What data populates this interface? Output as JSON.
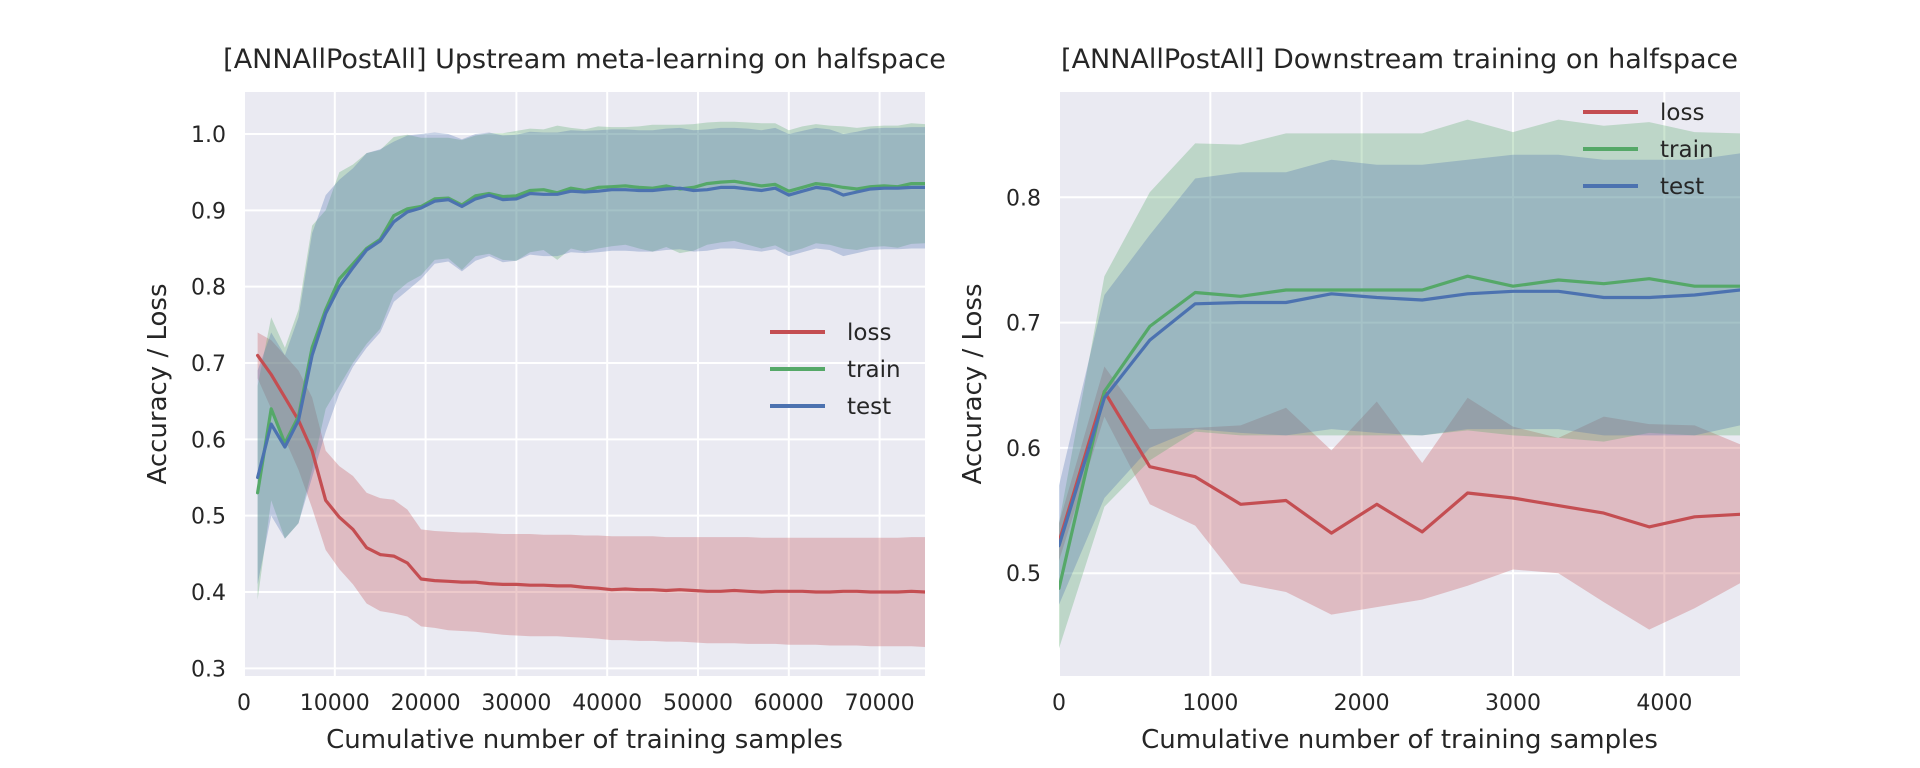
{
  "chart_data": [
    {
      "type": "line",
      "title": "[ANNAllPostAll] Upstream meta-learning on halfspace",
      "xlabel": "Cumulative number of training samples",
      "ylabel": "Accuracy / Loss",
      "xlim": [
        0,
        75000
      ],
      "ylim": [
        0.29,
        1.055
      ],
      "xticks": [
        0,
        10000,
        20000,
        30000,
        40000,
        50000,
        60000,
        70000
      ],
      "yticks": [
        0.3,
        0.4,
        0.5,
        0.6,
        0.7,
        0.8,
        0.9,
        1.0
      ],
      "ytick_labels": [
        "0.3",
        "0.4",
        "0.5",
        "0.6",
        "0.7",
        "0.8",
        "0.9",
        "1.0"
      ],
      "grid": true,
      "legend": "center-right",
      "x": [
        1500,
        3000,
        4500,
        6000,
        7500,
        9000,
        10500,
        12000,
        13500,
        15000,
        16500,
        18000,
        19500,
        21000,
        22500,
        24000,
        25500,
        27000,
        28500,
        30000,
        31500,
        33000,
        34500,
        36000,
        37500,
        39000,
        40500,
        42000,
        43500,
        45000,
        46500,
        48000,
        49500,
        51000,
        52500,
        54000,
        55500,
        57000,
        58500,
        60000,
        61500,
        63000,
        64500,
        66000,
        67500,
        69000,
        70500,
        72000,
        73500,
        75000
      ],
      "series": [
        {
          "name": "loss",
          "color": "#c44e52",
          "values": [
            0.71,
            0.685,
            0.655,
            0.625,
            0.585,
            0.52,
            0.498,
            0.482,
            0.458,
            0.449,
            0.447,
            0.438,
            0.417,
            0.415,
            0.414,
            0.413,
            0.413,
            0.411,
            0.41,
            0.41,
            0.409,
            0.409,
            0.408,
            0.408,
            0.406,
            0.405,
            0.403,
            0.404,
            0.403,
            0.403,
            0.402,
            0.403,
            0.402,
            0.401,
            0.401,
            0.402,
            0.401,
            0.4,
            0.401,
            0.401,
            0.401,
            0.4,
            0.4,
            0.401,
            0.401,
            0.4,
            0.4,
            0.4,
            0.401,
            0.4
          ],
          "lower": [
            0.68,
            0.64,
            0.6,
            0.56,
            0.51,
            0.455,
            0.43,
            0.41,
            0.385,
            0.375,
            0.372,
            0.368,
            0.355,
            0.353,
            0.35,
            0.349,
            0.348,
            0.346,
            0.344,
            0.343,
            0.342,
            0.342,
            0.342,
            0.341,
            0.34,
            0.339,
            0.337,
            0.337,
            0.336,
            0.336,
            0.335,
            0.335,
            0.334,
            0.333,
            0.333,
            0.333,
            0.332,
            0.332,
            0.332,
            0.331,
            0.331,
            0.331,
            0.33,
            0.33,
            0.33,
            0.329,
            0.329,
            0.329,
            0.329,
            0.328
          ],
          "upper": [
            0.74,
            0.73,
            0.71,
            0.69,
            0.655,
            0.585,
            0.565,
            0.552,
            0.53,
            0.523,
            0.521,
            0.508,
            0.482,
            0.48,
            0.479,
            0.478,
            0.478,
            0.477,
            0.476,
            0.476,
            0.476,
            0.475,
            0.475,
            0.475,
            0.474,
            0.474,
            0.473,
            0.473,
            0.473,
            0.473,
            0.472,
            0.472,
            0.472,
            0.472,
            0.472,
            0.472,
            0.472,
            0.471,
            0.471,
            0.471,
            0.471,
            0.471,
            0.471,
            0.471,
            0.471,
            0.471,
            0.471,
            0.471,
            0.472,
            0.472
          ]
        },
        {
          "name": "train",
          "color": "#55a868",
          "values": [
            0.53,
            0.64,
            0.595,
            0.63,
            0.72,
            0.77,
            0.81,
            0.83,
            0.85,
            0.862,
            0.893,
            0.902,
            0.905,
            0.915,
            0.916,
            0.907,
            0.919,
            0.922,
            0.918,
            0.919,
            0.926,
            0.927,
            0.923,
            0.929,
            0.926,
            0.93,
            0.931,
            0.932,
            0.93,
            0.929,
            0.932,
            0.928,
            0.93,
            0.935,
            0.937,
            0.938,
            0.935,
            0.932,
            0.934,
            0.925,
            0.93,
            0.935,
            0.933,
            0.93,
            0.928,
            0.931,
            0.932,
            0.931,
            0.935,
            0.935
          ],
          "lower": [
            0.39,
            0.52,
            0.47,
            0.49,
            0.56,
            0.64,
            0.67,
            0.7,
            0.725,
            0.745,
            0.79,
            0.805,
            0.815,
            0.835,
            0.837,
            0.822,
            0.84,
            0.843,
            0.835,
            0.834,
            0.845,
            0.848,
            0.835,
            0.85,
            0.846,
            0.85,
            0.853,
            0.855,
            0.85,
            0.846,
            0.852,
            0.844,
            0.847,
            0.855,
            0.858,
            0.86,
            0.855,
            0.85,
            0.854,
            0.845,
            0.85,
            0.857,
            0.855,
            0.85,
            0.848,
            0.852,
            0.853,
            0.851,
            0.856,
            0.857
          ],
          "upper": [
            0.67,
            0.76,
            0.72,
            0.77,
            0.88,
            0.9,
            0.95,
            0.96,
            0.975,
            0.979,
            0.996,
            0.999,
            0.995,
            0.995,
            0.995,
            0.992,
            0.998,
            1.001,
            1.001,
            1.004,
            1.007,
            1.006,
            1.011,
            1.008,
            1.006,
            1.01,
            1.009,
            1.009,
            1.01,
            1.012,
            1.012,
            1.012,
            1.013,
            1.015,
            1.016,
            1.016,
            1.015,
            1.014,
            1.014,
            1.005,
            1.01,
            1.013,
            1.011,
            1.01,
            1.008,
            1.01,
            1.011,
            1.011,
            1.014,
            1.013
          ]
        },
        {
          "name": "test",
          "color": "#4c72b0",
          "values": [
            0.55,
            0.62,
            0.59,
            0.625,
            0.71,
            0.765,
            0.8,
            0.825,
            0.848,
            0.86,
            0.885,
            0.898,
            0.903,
            0.912,
            0.914,
            0.905,
            0.915,
            0.92,
            0.914,
            0.915,
            0.922,
            0.921,
            0.921,
            0.925,
            0.924,
            0.925,
            0.927,
            0.927,
            0.926,
            0.926,
            0.928,
            0.929,
            0.926,
            0.927,
            0.93,
            0.93,
            0.928,
            0.926,
            0.929,
            0.92,
            0.925,
            0.93,
            0.928,
            0.92,
            0.924,
            0.928,
            0.929,
            0.929,
            0.93,
            0.93
          ],
          "lower": [
            0.41,
            0.5,
            0.47,
            0.49,
            0.55,
            0.61,
            0.66,
            0.695,
            0.72,
            0.74,
            0.78,
            0.795,
            0.81,
            0.83,
            0.833,
            0.82,
            0.834,
            0.84,
            0.832,
            0.834,
            0.842,
            0.84,
            0.84,
            0.845,
            0.844,
            0.845,
            0.847,
            0.847,
            0.846,
            0.846,
            0.848,
            0.849,
            0.846,
            0.847,
            0.85,
            0.85,
            0.848,
            0.846,
            0.849,
            0.84,
            0.845,
            0.85,
            0.848,
            0.84,
            0.844,
            0.848,
            0.849,
            0.849,
            0.85,
            0.85
          ],
          "upper": [
            0.69,
            0.74,
            0.71,
            0.76,
            0.87,
            0.92,
            0.94,
            0.955,
            0.975,
            0.98,
            0.99,
            0.998,
            1.0,
            1.002,
            1.0,
            0.993,
            1.0,
            1.002,
            0.998,
            0.999,
            1.003,
            1.002,
            1.002,
            1.005,
            1.004,
            1.005,
            1.006,
            1.006,
            1.005,
            1.005,
            1.007,
            1.008,
            1.005,
            1.006,
            1.008,
            1.008,
            1.007,
            1.005,
            1.008,
            1.0,
            1.004,
            1.008,
            1.006,
            1.0,
            1.003,
            1.007,
            1.008,
            1.008,
            1.009,
            1.009
          ]
        }
      ]
    },
    {
      "type": "line",
      "title": "[ANNAllPostAll] Downstream training on halfspace",
      "xlabel": "Cumulative number of training samples",
      "ylabel": "Accuracy / Loss",
      "xlim": [
        0,
        4500
      ],
      "ylim": [
        0.418,
        0.884
      ],
      "xticks": [
        0,
        1000,
        2000,
        3000,
        4000
      ],
      "yticks": [
        0.5,
        0.6,
        0.7,
        0.8
      ],
      "ytick_labels": [
        "0.5",
        "0.6",
        "0.7",
        "0.8"
      ],
      "grid": true,
      "legend": "top-right",
      "x": [
        0,
        300,
        600,
        900,
        1200,
        1500,
        1800,
        2100,
        2400,
        2700,
        3000,
        3300,
        3600,
        3900,
        4200,
        4500
      ],
      "series": [
        {
          "name": "loss",
          "color": "#c44e52",
          "values": [
            0.525,
            0.645,
            0.585,
            0.577,
            0.555,
            0.558,
            0.532,
            0.555,
            0.533,
            0.564,
            0.56,
            0.554,
            0.548,
            0.537,
            0.545,
            0.547
          ],
          "lower": [
            0.51,
            0.625,
            0.555,
            0.538,
            0.492,
            0.485,
            0.467,
            0.473,
            0.479,
            0.49,
            0.503,
            0.5,
            0.477,
            0.455,
            0.472,
            0.492
          ],
          "upper": [
            0.54,
            0.665,
            0.615,
            0.616,
            0.618,
            0.632,
            0.598,
            0.637,
            0.588,
            0.64,
            0.617,
            0.608,
            0.625,
            0.619,
            0.618,
            0.603
          ]
        },
        {
          "name": "train",
          "color": "#55a868",
          "values": [
            0.488,
            0.645,
            0.697,
            0.724,
            0.721,
            0.726,
            0.726,
            0.726,
            0.726,
            0.737,
            0.729,
            0.734,
            0.731,
            0.735,
            0.729,
            0.729
          ],
          "lower": [
            0.44,
            0.553,
            0.59,
            0.613,
            0.61,
            0.61,
            0.61,
            0.61,
            0.61,
            0.614,
            0.61,
            0.608,
            0.605,
            0.612,
            0.61,
            0.61
          ],
          "upper": [
            0.54,
            0.737,
            0.804,
            0.843,
            0.842,
            0.851,
            0.851,
            0.851,
            0.851,
            0.862,
            0.852,
            0.862,
            0.857,
            0.86,
            0.852,
            0.851
          ]
        },
        {
          "name": "test",
          "color": "#4c72b0",
          "values": [
            0.522,
            0.64,
            0.686,
            0.715,
            0.716,
            0.716,
            0.723,
            0.72,
            0.718,
            0.723,
            0.725,
            0.725,
            0.72,
            0.72,
            0.722,
            0.726
          ],
          "lower": [
            0.475,
            0.56,
            0.6,
            0.615,
            0.612,
            0.61,
            0.615,
            0.612,
            0.61,
            0.615,
            0.615,
            0.615,
            0.61,
            0.61,
            0.61,
            0.618
          ],
          "upper": [
            0.57,
            0.722,
            0.77,
            0.815,
            0.82,
            0.82,
            0.83,
            0.826,
            0.826,
            0.83,
            0.834,
            0.834,
            0.83,
            0.83,
            0.83,
            0.835
          ]
        }
      ]
    }
  ]
}
